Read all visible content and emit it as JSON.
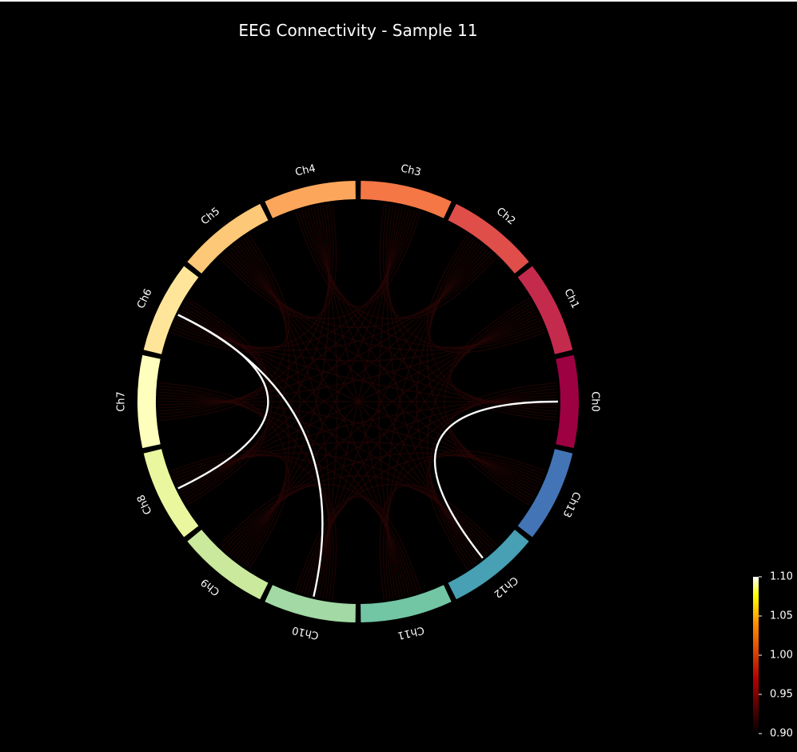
{
  "chart_data": {
    "type": "chord",
    "title": "EEG Connectivity - Sample 11",
    "nodes": [
      {
        "label": "Ch0",
        "color": "#9e0142"
      },
      {
        "label": "Ch1",
        "color": "#c42a4c"
      },
      {
        "label": "Ch2",
        "color": "#e04e4a"
      },
      {
        "label": "Ch3",
        "color": "#f47745"
      },
      {
        "label": "Ch4",
        "color": "#fca65c"
      },
      {
        "label": "Ch5",
        "color": "#fdc877"
      },
      {
        "label": "Ch6",
        "color": "#fee59a"
      },
      {
        "label": "Ch7",
        "color": "#fefebd"
      },
      {
        "label": "Ch8",
        "color": "#eaf79e"
      },
      {
        "label": "Ch9",
        "color": "#cbe99d"
      },
      {
        "label": "Ch10",
        "color": "#a2d9a4"
      },
      {
        "label": "Ch11",
        "color": "#72c6a4"
      },
      {
        "label": "Ch12",
        "color": "#47a0b3"
      },
      {
        "label": "Ch13",
        "color": "#4375b6"
      }
    ],
    "strong_links": [
      {
        "source": "Ch6",
        "target": "Ch8",
        "value": 1.1
      },
      {
        "source": "Ch6",
        "target": "Ch10",
        "value": 1.1
      },
      {
        "source": "Ch0",
        "target": "Ch12",
        "value": 1.1
      }
    ],
    "colorbar": {
      "colormap": "hot",
      "min": 0.9,
      "max": 1.1,
      "ticks": [
        "1.10",
        "1.05",
        "1.00",
        "0.95",
        "0.90"
      ]
    },
    "background": "#000000"
  }
}
